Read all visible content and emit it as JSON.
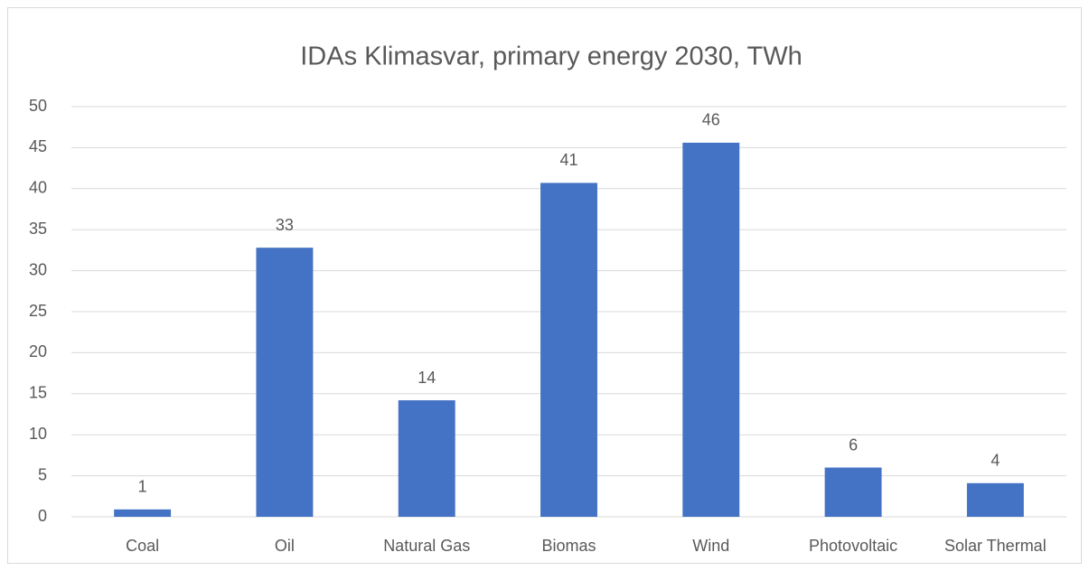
{
  "chart_data": {
    "type": "bar",
    "title": "IDAs Klimasvar, primary energy 2030, TWh",
    "categories": [
      "Coal",
      "Oil",
      "Natural Gas",
      "Biomas",
      "Wind",
      "Photovoltaic",
      "Solar Thermal"
    ],
    "values": [
      0.9,
      32.8,
      14.2,
      40.7,
      45.6,
      6.0,
      4.1
    ],
    "value_labels": [
      "1",
      "33",
      "14",
      "41",
      "46",
      "6",
      "4"
    ],
    "color": "#4472c4",
    "ylim": [
      0,
      50
    ],
    "yticks": [
      0,
      5,
      10,
      15,
      20,
      25,
      30,
      35,
      40,
      45,
      50
    ],
    "grid": true
  }
}
